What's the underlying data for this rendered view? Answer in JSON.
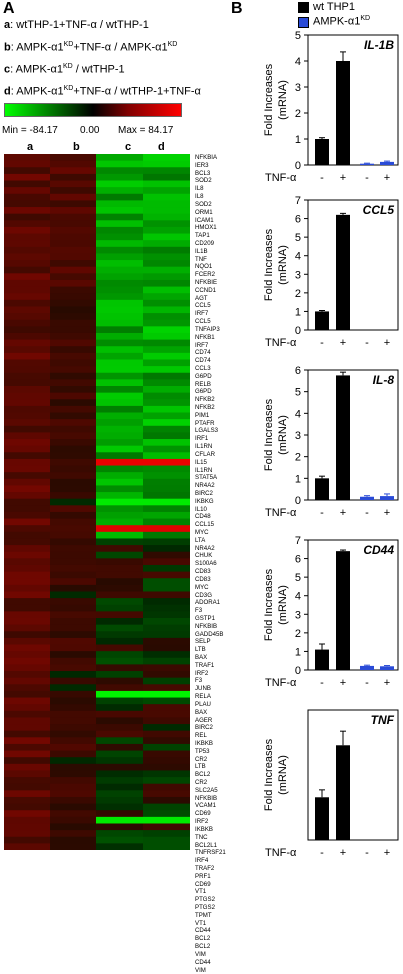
{
  "panel_a": {
    "label": "A",
    "comparisons": [
      {
        "key": "a",
        "text": "wtTHP-1+TNF-α / wtTHP-1",
        "parts": [
          "wtTHP-1+TNF-α / wtTHP-1"
        ]
      },
      {
        "key": "b",
        "text": "AMPK-α1KD+TNF-α / AMPK-α1KD",
        "parts": [
          "AMPK-α1",
          "KD",
          "+TNF-α / AMPK-α1",
          "KD",
          ""
        ]
      },
      {
        "key": "c",
        "text": "AMPK-α1KD / wtTHP-1",
        "parts": [
          "AMPK-α1",
          "KD",
          " / wtTHP-1"
        ]
      },
      {
        "key": "d",
        "text": "AMPK-α1KD+TNF-α / wtTHP-1+TNF-α",
        "parts": [
          "AMPK-α1",
          "KD",
          "+TNF-α / wtTHP-1+TNF-α"
        ]
      }
    ],
    "scale": {
      "min_label": "Min = -84.17",
      "mid_label": "0.00",
      "max_label": "Max = 84.17",
      "min": -84.17,
      "max": 84.17
    },
    "columns": [
      "a",
      "b",
      "c",
      "d"
    ],
    "colors": {
      "up": "#ff0000",
      "down": "#00ff00",
      "zero": "#000000"
    },
    "genes": [
      "NFKBIA",
      "IER3",
      "BCL3",
      "SOD2",
      "IL8",
      "IL8",
      "SOD2",
      "ORM1",
      "ICAM1",
      "HMOX1",
      "TAP1",
      "CD209",
      "IL1B",
      "TNF",
      "NQO1",
      "FCER2",
      "NFKBIE",
      "CCND1",
      "AGT",
      "CCL5",
      "IRF7",
      "CCL5",
      "TNFAIP3",
      "NFKB1",
      "IRF7",
      "CD74",
      "CD74",
      "CCL3",
      "G6PD",
      "RELB",
      "G6PD",
      "NFKB2",
      "NFKB2",
      "PIM1",
      "PTAFR",
      "LGALS3",
      "IRF1",
      "IL1RN",
      "CFLAR",
      "IL15",
      "IL1RN",
      "STAT5A",
      "NR4A2",
      "BIRC2",
      "IKBKG",
      "IL10",
      "CD48",
      "CCL15",
      "MYC",
      "LTA",
      "NR4A2",
      "CHUK",
      "S100A6",
      "CD83",
      "CD83",
      "MYC",
      "CD3G",
      "ADORA1",
      "F3",
      "GSTP1",
      "NFKBIB",
      "GADD45B",
      "SELP",
      "LTB",
      "BAX",
      "TRAF1",
      "IRF2",
      "F3",
      "JUNB",
      "RELA",
      "PLAU",
      "BAX",
      "AGER",
      "BIRC2",
      "REL",
      "IKBKB",
      "TP53",
      "CR2",
      "LTB",
      "BCL2",
      "CR2",
      "SLC2A5",
      "NFKBIB",
      "VCAM1",
      "CD69",
      "IRF2",
      "IKBKB",
      "TNC",
      "BCL2L1",
      "TNFRSF21",
      "IRF4",
      "TRAF2",
      "PRF1",
      "CD69",
      "VT1",
      "PTGS2",
      "PTGS2",
      "TPMT",
      "VT1",
      "CD44",
      "BCL2",
      "BCL2",
      "VIM",
      "CD44",
      "VIM"
    ]
  },
  "panel_b": {
    "label": "B",
    "legend": [
      {
        "name": "wt THP1",
        "color": "#000000"
      },
      {
        "name": "AMPK-α1KD",
        "color": "#2a4bd7",
        "parts": [
          "AMPK-α1",
          "KD"
        ]
      }
    ],
    "row_label": "TNF-α"
  },
  "chart_data": [
    {
      "type": "bar",
      "title": "IL-1B",
      "ylabel": "Fold Increases (mRNA)",
      "ylim": [
        0,
        5
      ],
      "yticks": [
        0,
        1,
        2,
        3,
        4,
        5
      ],
      "categories": [
        "-",
        "+",
        "-",
        "+"
      ],
      "series": [
        {
          "name": "wt THP1",
          "values": [
            1.0,
            4.0,
            null,
            null
          ],
          "errors": [
            0.05,
            0.35,
            null,
            null
          ]
        },
        {
          "name": "AMPK-α1KD",
          "values": [
            null,
            null,
            0.05,
            0.12
          ],
          "errors": [
            null,
            null,
            0.02,
            0.03
          ]
        }
      ]
    },
    {
      "type": "bar",
      "title": "CCL5",
      "ylabel": "Fold Increases (mRNA)",
      "ylim": [
        0,
        7
      ],
      "yticks": [
        0,
        1,
        2,
        3,
        4,
        5,
        6,
        7
      ],
      "categories": [
        "-",
        "+",
        "-",
        "+"
      ],
      "series": [
        {
          "name": "wt THP1",
          "values": [
            1.0,
            6.2,
            null,
            null
          ],
          "errors": [
            0.05,
            0.08,
            null,
            null
          ]
        },
        {
          "name": "AMPK-α1KD",
          "values": [
            null,
            null,
            null,
            null
          ],
          "errors": [
            null,
            null,
            null,
            null
          ]
        }
      ]
    },
    {
      "type": "bar",
      "title": "IL-8",
      "ylabel": "Fold Increases (mRNA)",
      "ylim": [
        0,
        6
      ],
      "yticks": [
        0,
        1,
        2,
        3,
        4,
        5,
        6
      ],
      "categories": [
        "-",
        "+",
        "-",
        "+"
      ],
      "series": [
        {
          "name": "wt THP1",
          "values": [
            1.0,
            5.75,
            null,
            null
          ],
          "errors": [
            0.1,
            0.15,
            null,
            null
          ]
        },
        {
          "name": "AMPK-α1KD",
          "values": [
            null,
            null,
            0.15,
            0.18
          ],
          "errors": [
            null,
            null,
            0.05,
            0.1
          ]
        }
      ]
    },
    {
      "type": "bar",
      "title": "CD44",
      "ylabel": "Fold Increases (mRNA)",
      "ylim": [
        0,
        7
      ],
      "yticks": [
        0,
        1,
        2,
        3,
        4,
        5,
        6,
        7
      ],
      "categories": [
        "-",
        "+",
        "-",
        "+"
      ],
      "series": [
        {
          "name": "wt THP1",
          "values": [
            1.1,
            6.4,
            null,
            null
          ],
          "errors": [
            0.3,
            0.06,
            null,
            null
          ]
        },
        {
          "name": "AMPK-α1KD",
          "values": [
            null,
            null,
            0.22,
            0.2
          ],
          "errors": [
            null,
            null,
            0.04,
            0.04
          ]
        }
      ]
    },
    {
      "type": "bar",
      "title": "TNF",
      "ylabel": "Fold Increases (mRNA)",
      "ylim": [
        0,
        3.5
      ],
      "yticks": [],
      "categories": [
        "-",
        "+",
        "-",
        "+"
      ],
      "series": [
        {
          "name": "wt THP1",
          "values": [
            1.15,
            2.55,
            null,
            null
          ],
          "errors": [
            0.2,
            0.38,
            null,
            null
          ]
        },
        {
          "name": "AMPK-α1KD",
          "values": [
            null,
            null,
            null,
            null
          ],
          "errors": [
            null,
            null,
            null,
            null
          ]
        }
      ]
    }
  ]
}
